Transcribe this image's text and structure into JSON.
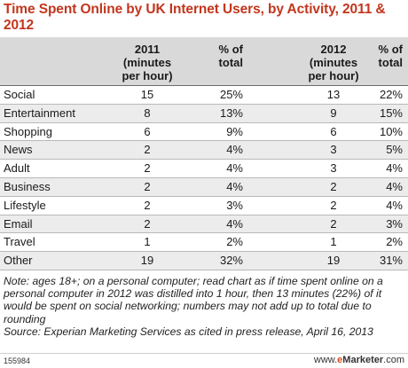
{
  "chart_data": {
    "type": "table",
    "title": "Time Spent Online by UK Internet Users, by Activity, 2011 & 2012",
    "columns": [
      "",
      "2011\n(minutes\nper hour)",
      "% of\ntotal",
      "2012\n(minutes\nper hour)",
      "% of\ntotal"
    ],
    "rows": [
      {
        "activity": "Social",
        "min_2011": "15",
        "pct_2011": "25%",
        "min_2012": "13",
        "pct_2012": "22%"
      },
      {
        "activity": "Entertainment",
        "min_2011": "8",
        "pct_2011": "13%",
        "min_2012": "9",
        "pct_2012": "15%"
      },
      {
        "activity": "Shopping",
        "min_2011": "6",
        "pct_2011": "9%",
        "min_2012": "6",
        "pct_2012": "10%"
      },
      {
        "activity": "News",
        "min_2011": "2",
        "pct_2011": "4%",
        "min_2012": "3",
        "pct_2012": "5%"
      },
      {
        "activity": "Adult",
        "min_2011": "2",
        "pct_2011": "4%",
        "min_2012": "3",
        "pct_2012": "4%"
      },
      {
        "activity": "Business",
        "min_2011": "2",
        "pct_2011": "4%",
        "min_2012": "2",
        "pct_2012": "4%"
      },
      {
        "activity": "Lifestyle",
        "min_2011": "2",
        "pct_2011": "3%",
        "min_2012": "2",
        "pct_2012": "4%"
      },
      {
        "activity": "Email",
        "min_2011": "2",
        "pct_2011": "4%",
        "min_2012": "2",
        "pct_2012": "3%"
      },
      {
        "activity": "Travel",
        "min_2011": "1",
        "pct_2011": "2%",
        "min_2012": "1",
        "pct_2012": "2%"
      },
      {
        "activity": "Other",
        "min_2011": "19",
        "pct_2011": "32%",
        "min_2012": "19",
        "pct_2012": "31%"
      }
    ],
    "notes": "Note: ages 18+; on a personal computer; read chart as if time spent online on a personal computer in 2012 was distilled into 1 hour, then 13 minutes (22%) of it would be spent on social networking; numbers may not add up to total due to rounding",
    "source": "Source: Experian Marketing Services as cited in press release, April 16, 2013",
    "chart_id": "155984",
    "brand": {
      "prefix": "www.",
      "e": "e",
      "name": "Marketer",
      "suffix": ".com"
    },
    "colors": {
      "title": "#c2361d",
      "header_bg": "#d9d9d9",
      "row_shade": "#ececec"
    }
  }
}
